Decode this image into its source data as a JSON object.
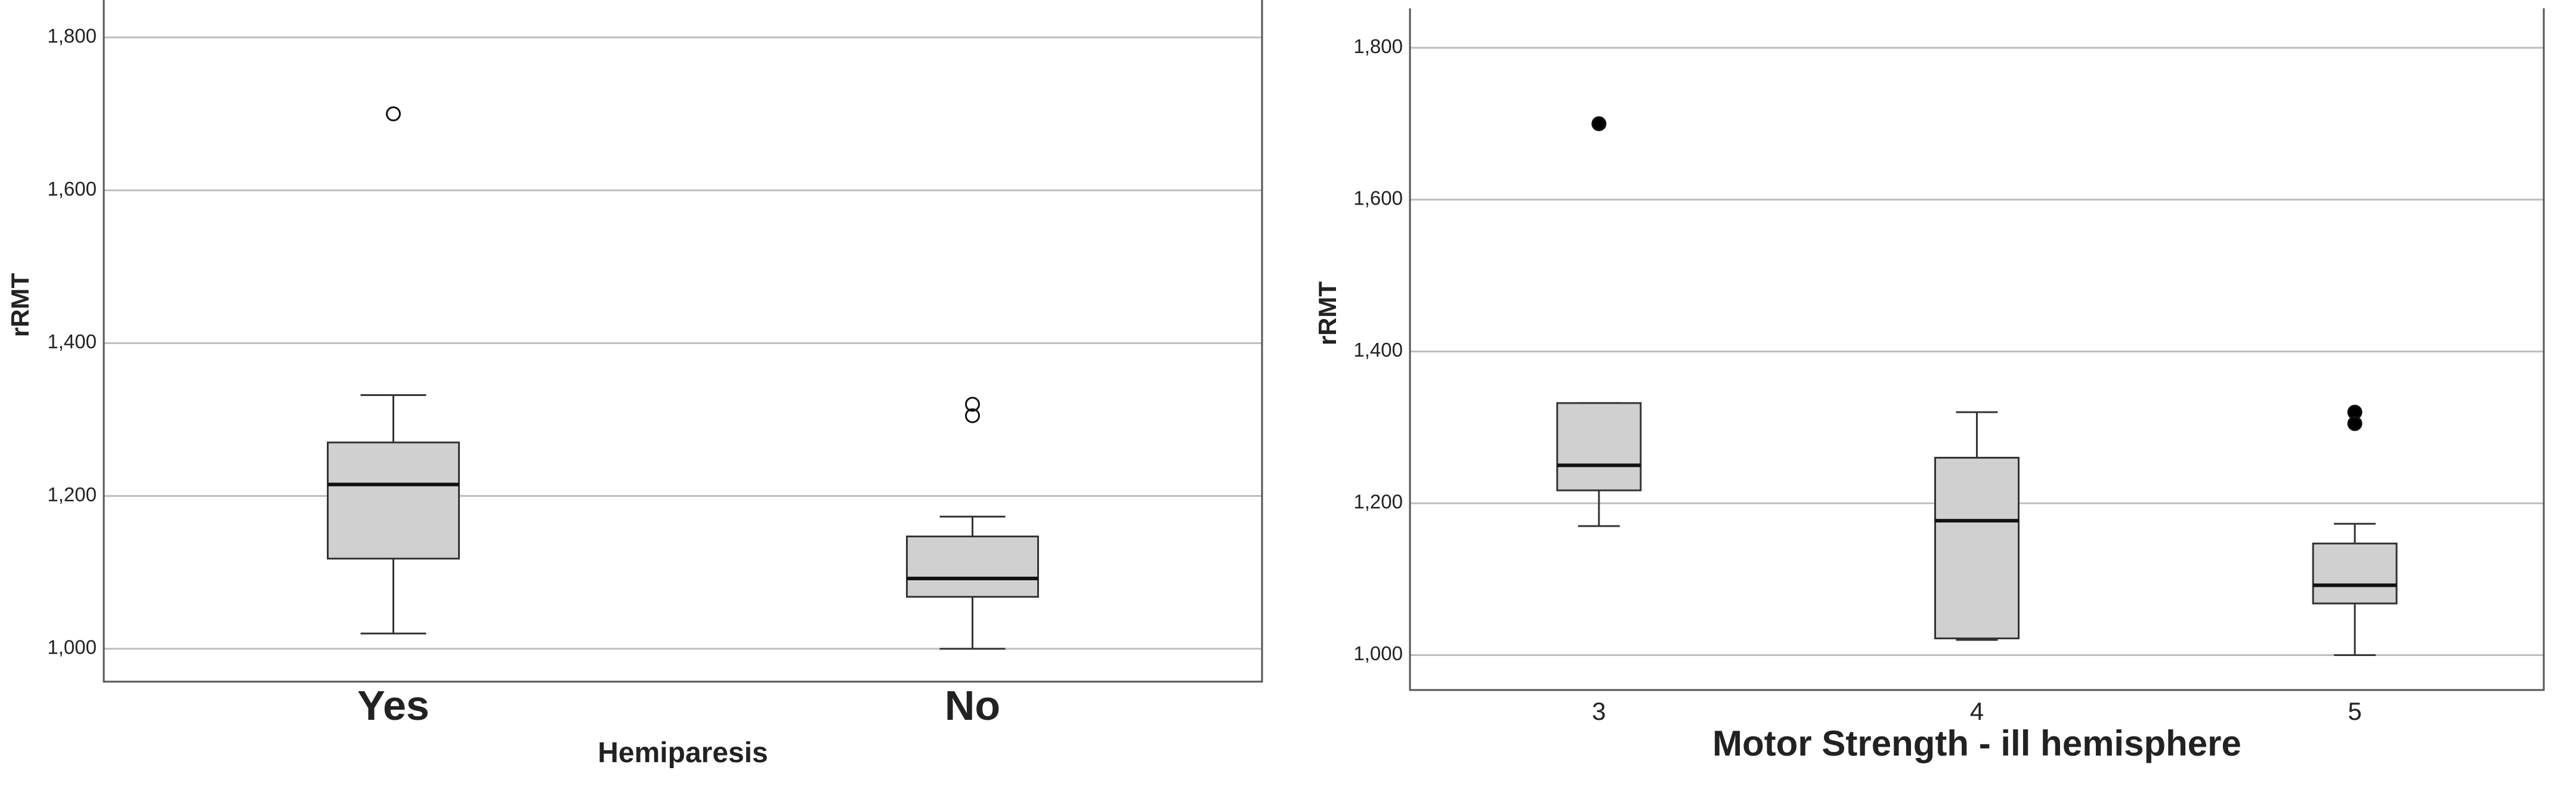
{
  "chart_data": [
    {
      "type": "box",
      "y_label": "rRMT",
      "x_label": "Hemiparesis",
      "categories": [
        "Yes",
        "No"
      ],
      "boxes": [
        {
          "low": 1.02,
          "q1": 1.118,
          "median": 1.215,
          "q3": 1.27,
          "high": 1.332,
          "outliers": [
            1.7
          ]
        },
        {
          "low": 1.0,
          "q1": 1.068,
          "median": 1.092,
          "q3": 1.147,
          "high": 1.173,
          "outliers": [
            1.32,
            1.305
          ]
        }
      ],
      "ylim": [
        0.957,
        1.849
      ],
      "yticks": [
        {
          "value": 1.0,
          "label": "1,000"
        },
        {
          "value": 1.2,
          "label": "1,200"
        },
        {
          "value": 1.4,
          "label": "1,400"
        },
        {
          "value": 1.6,
          "label": "1,600"
        },
        {
          "value": 1.8,
          "label": "1,800"
        }
      ],
      "grid": true,
      "color": "#d0d0d0",
      "outlier_fill": "none"
    },
    {
      "type": "box",
      "y_label": "rRMT",
      "x_label": "Motor Strength - ill hemisphere",
      "categories": [
        "3",
        "4",
        "5"
      ],
      "boxes": [
        {
          "low": 1.17,
          "q1": 1.217,
          "median": 1.25,
          "q3": 1.332,
          "high": 1.332,
          "outliers": [
            1.7
          ]
        },
        {
          "low": 1.02,
          "q1": 1.022,
          "median": 1.177,
          "q3": 1.26,
          "high": 1.32,
          "outliers": []
        },
        {
          "low": 1.0,
          "q1": 1.068,
          "median": 1.092,
          "q3": 1.147,
          "high": 1.173,
          "outliers": [
            1.32,
            1.305
          ]
        }
      ],
      "ylim": [
        0.954,
        1.852
      ],
      "yticks": [
        {
          "value": 1.0,
          "label": "1,000"
        },
        {
          "value": 1.2,
          "label": "1,200"
        },
        {
          "value": 1.4,
          "label": "1,400"
        },
        {
          "value": 1.6,
          "label": "1,600"
        },
        {
          "value": 1.8,
          "label": "1,800"
        }
      ],
      "grid": true,
      "color": "#d0d0d0",
      "outlier_fill": "#000"
    }
  ]
}
